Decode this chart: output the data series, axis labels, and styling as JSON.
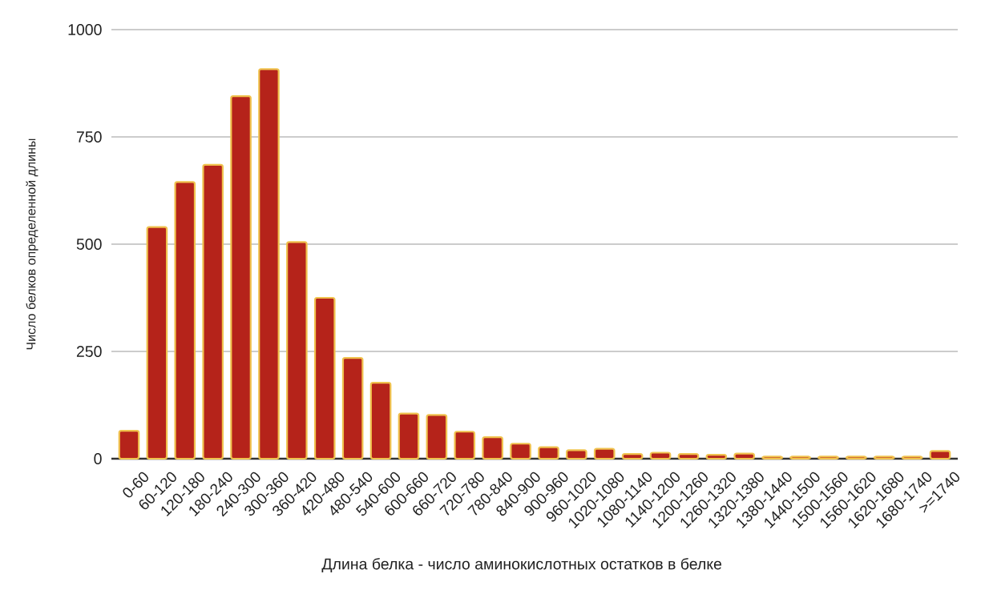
{
  "chart_data": {
    "type": "bar",
    "xlabel": "Длина белка - число аминокислотных остатков в белке",
    "ylabel": "Число белков определенной длины",
    "categories": [
      "0-60",
      "60-120",
      "120-180",
      "180-240",
      "240-300",
      "300-360",
      "360-420",
      "420-480",
      "480-540",
      "540-600",
      "600-660",
      "660-720",
      "720-780",
      "780-840",
      "840-900",
      "900-960",
      "960-1020",
      "1020-1080",
      "1080-1140",
      "1140-1200",
      "1200-1260",
      "1260-1320",
      "1320-1380",
      "1380-1440",
      "1440-1500",
      "1500-1560",
      "1560-1620",
      "1620-1680",
      "1680-1740",
      ">=1740"
    ],
    "values": [
      65,
      540,
      645,
      685,
      845,
      908,
      505,
      375,
      235,
      177,
      105,
      102,
      63,
      50,
      35,
      27,
      20,
      23,
      11,
      14,
      11,
      9,
      12,
      5,
      5,
      5,
      5,
      5,
      5,
      18
    ],
    "color": "#b5231a",
    "ylim": [
      0,
      1000
    ],
    "yticks": [
      0,
      250,
      500,
      750,
      1000
    ],
    "grid": "y"
  }
}
